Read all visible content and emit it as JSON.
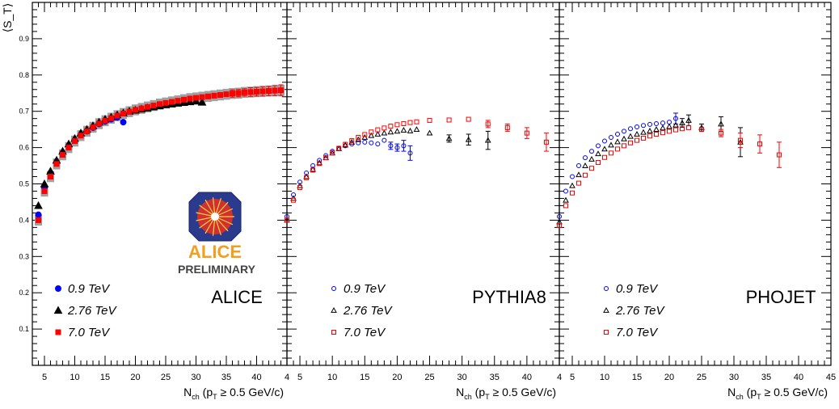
{
  "y_axis_label": "⟨S_T⟩",
  "colors": {
    "e09": "#0000ff",
    "e276": "#000000",
    "e70": "#ff0000",
    "band": "#a0a0a0"
  },
  "x_axis_label": {
    "main": "N",
    "sub": "ch",
    "mid": "  (p",
    "sub2": "T",
    "tail": " ≥ 0.5 GeV/c)"
  },
  "logo": {
    "word": "ALICE",
    "caption": "PRELIMINARY"
  },
  "chart_data": [
    {
      "type": "scatter",
      "panel_label": "ALICE",
      "xlim": [
        3,
        45
      ],
      "ylim": [
        0,
        1
      ],
      "x_ticks": [
        "5",
        "10",
        "15",
        "20",
        "25",
        "30",
        "35",
        "40",
        "4"
      ],
      "y_ticks": [
        "0.1",
        "0.2",
        "0.3",
        "0.4",
        "0.5",
        "0.6",
        "0.7",
        "0.8",
        "0.9"
      ],
      "marker_style": "filled",
      "systematic_band": true,
      "legend": [
        "0.9 TeV",
        "2.76 TeV",
        "7.0 TeV"
      ],
      "series": [
        {
          "name": "0.9 TeV",
          "color": "#0000ff",
          "marker": "circle",
          "x": [
            4,
            5,
            6,
            7,
            8,
            9,
            10,
            11,
            12,
            13,
            14,
            15,
            16,
            17,
            18
          ],
          "y": [
            0.415,
            0.49,
            0.53,
            0.56,
            0.585,
            0.605,
            0.62,
            0.635,
            0.645,
            0.655,
            0.665,
            0.672,
            0.678,
            0.683,
            0.67
          ],
          "err": [
            0,
            0,
            0,
            0,
            0,
            0,
            0,
            0,
            0,
            0,
            0,
            0,
            0,
            0,
            0
          ]
        },
        {
          "name": "2.76 TeV",
          "color": "#000000",
          "marker": "triangle",
          "x": [
            4,
            5,
            6,
            7,
            8,
            9,
            10,
            11,
            12,
            13,
            14,
            15,
            16,
            17,
            18,
            19,
            20,
            21,
            22,
            23,
            24,
            25,
            26,
            27,
            28,
            29,
            30,
            31
          ],
          "y": [
            0.44,
            0.5,
            0.535,
            0.565,
            0.59,
            0.61,
            0.625,
            0.64,
            0.65,
            0.66,
            0.67,
            0.678,
            0.684,
            0.69,
            0.695,
            0.7,
            0.703,
            0.706,
            0.709,
            0.712,
            0.715,
            0.718,
            0.72,
            0.722,
            0.724,
            0.726,
            0.728,
            0.725
          ],
          "err": [
            0,
            0,
            0,
            0,
            0,
            0,
            0,
            0,
            0,
            0,
            0,
            0,
            0,
            0,
            0,
            0,
            0,
            0,
            0,
            0,
            0,
            0,
            0,
            0,
            0,
            0,
            0,
            0
          ]
        },
        {
          "name": "7.0 TeV",
          "color": "#ff0000",
          "marker": "square",
          "x": [
            4,
            5,
            6,
            7,
            8,
            9,
            10,
            11,
            12,
            13,
            14,
            15,
            16,
            17,
            18,
            19,
            20,
            21,
            22,
            23,
            24,
            25,
            26,
            27,
            28,
            29,
            30,
            31,
            32,
            33,
            34,
            35,
            36,
            37,
            38,
            39,
            40,
            41,
            42,
            43,
            44
          ],
          "y": [
            0.4,
            0.48,
            0.52,
            0.555,
            0.58,
            0.6,
            0.618,
            0.633,
            0.645,
            0.656,
            0.666,
            0.674,
            0.681,
            0.688,
            0.694,
            0.699,
            0.704,
            0.708,
            0.712,
            0.716,
            0.72,
            0.723,
            0.726,
            0.729,
            0.732,
            0.735,
            0.737,
            0.739,
            0.741,
            0.743,
            0.745,
            0.747,
            0.749,
            0.75,
            0.752,
            0.753,
            0.754,
            0.755,
            0.756,
            0.757,
            0.758
          ],
          "err": [
            0,
            0,
            0,
            0,
            0,
            0,
            0,
            0,
            0,
            0,
            0,
            0,
            0,
            0,
            0,
            0,
            0,
            0,
            0,
            0,
            0,
            0,
            0,
            0,
            0,
            0,
            0,
            0,
            0,
            0,
            0,
            0,
            0.01,
            0.01,
            0.01,
            0.012,
            0.012,
            0.013,
            0.013,
            0.014,
            0.015
          ]
        }
      ]
    },
    {
      "type": "scatter",
      "panel_label": "PYTHIA8",
      "xlim": [
        3,
        45
      ],
      "ylim": [
        0,
        1
      ],
      "x_ticks": [
        "5",
        "10",
        "15",
        "20",
        "25",
        "30",
        "35",
        "40",
        "4"
      ],
      "y_ticks": [],
      "marker_style": "open",
      "systematic_band": false,
      "legend": [
        "0.9 TeV",
        "2.76 TeV",
        "7.0 TeV"
      ],
      "series": [
        {
          "name": "0.9 TeV",
          "color": "#0000ff",
          "marker": "circle",
          "x": [
            3,
            4,
            5,
            6,
            7,
            8,
            9,
            10,
            11,
            12,
            13,
            14,
            15,
            16,
            17,
            18,
            19,
            20,
            21,
            22
          ],
          "y": [
            0.41,
            0.47,
            0.505,
            0.53,
            0.55,
            0.565,
            0.578,
            0.59,
            0.598,
            0.605,
            0.61,
            0.613,
            0.615,
            0.613,
            0.61,
            0.62,
            0.605,
            0.6,
            0.605,
            0.585
          ],
          "err": [
            0,
            0,
            0,
            0,
            0,
            0,
            0,
            0,
            0,
            0,
            0,
            0,
            0,
            0,
            0,
            0,
            0.01,
            0.01,
            0.015,
            0.02
          ]
        },
        {
          "name": "2.76 TeV",
          "color": "#000000",
          "marker": "triangle",
          "x": [
            3,
            4,
            5,
            6,
            7,
            8,
            9,
            10,
            11,
            12,
            13,
            14,
            15,
            16,
            17,
            18,
            19,
            20,
            21,
            22,
            23,
            25,
            28,
            31,
            34
          ],
          "y": [
            0.4,
            0.46,
            0.495,
            0.52,
            0.54,
            0.558,
            0.572,
            0.585,
            0.597,
            0.607,
            0.615,
            0.622,
            0.628,
            0.633,
            0.637,
            0.64,
            0.643,
            0.645,
            0.648,
            0.646,
            0.65,
            0.64,
            0.625,
            0.622,
            0.62
          ],
          "err": [
            0,
            0,
            0,
            0,
            0,
            0,
            0,
            0,
            0,
            0,
            0,
            0,
            0,
            0,
            0,
            0,
            0,
            0,
            0,
            0,
            0,
            0,
            0.01,
            0.015,
            0.025
          ]
        },
        {
          "name": "7.0 TeV",
          "color": "#ff0000",
          "marker": "square",
          "x": [
            3,
            4,
            5,
            6,
            7,
            8,
            9,
            10,
            11,
            12,
            13,
            14,
            15,
            16,
            17,
            18,
            19,
            20,
            21,
            22,
            23,
            25,
            28,
            31,
            34,
            37,
            40,
            43
          ],
          "y": [
            0.4,
            0.455,
            0.49,
            0.517,
            0.538,
            0.556,
            0.572,
            0.586,
            0.598,
            0.609,
            0.619,
            0.628,
            0.636,
            0.643,
            0.649,
            0.654,
            0.659,
            0.663,
            0.666,
            0.669,
            0.671,
            0.675,
            0.676,
            0.678,
            0.665,
            0.655,
            0.64,
            0.615
          ],
          "err": [
            0,
            0,
            0,
            0,
            0,
            0,
            0,
            0,
            0,
            0,
            0,
            0,
            0,
            0,
            0,
            0,
            0,
            0,
            0,
            0,
            0,
            0,
            0,
            0,
            0.01,
            0.01,
            0.015,
            0.025
          ]
        }
      ]
    },
    {
      "type": "scatter",
      "panel_label": "PHOJET",
      "xlim": [
        3,
        45
      ],
      "ylim": [
        0,
        1
      ],
      "x_ticks": [
        "5",
        "10",
        "15",
        "20",
        "25",
        "30",
        "35",
        "40",
        "45"
      ],
      "y_ticks": [],
      "marker_style": "open",
      "systematic_band": false,
      "legend": [
        "0.9 TeV",
        "2.76 TeV",
        "7.0 TeV"
      ],
      "series": [
        {
          "name": "0.9 TeV",
          "color": "#0000ff",
          "marker": "circle",
          "x": [
            3,
            4,
            5,
            6,
            7,
            8,
            9,
            10,
            11,
            12,
            13,
            14,
            15,
            16,
            17,
            18,
            19,
            20,
            21
          ],
          "y": [
            0.41,
            0.48,
            0.52,
            0.55,
            0.572,
            0.59,
            0.605,
            0.618,
            0.628,
            0.637,
            0.645,
            0.652,
            0.657,
            0.661,
            0.664,
            0.666,
            0.668,
            0.67,
            0.68
          ],
          "err": [
            0,
            0,
            0,
            0,
            0,
            0,
            0,
            0,
            0,
            0,
            0,
            0,
            0,
            0,
            0,
            0,
            0,
            0,
            0.015
          ]
        },
        {
          "name": "2.76 TeV",
          "color": "#000000",
          "marker": "triangle",
          "x": [
            3,
            4,
            5,
            6,
            7,
            8,
            9,
            10,
            11,
            12,
            13,
            14,
            15,
            16,
            17,
            18,
            19,
            20,
            21,
            22,
            23,
            25,
            28,
            31
          ],
          "y": [
            0.395,
            0.455,
            0.495,
            0.525,
            0.55,
            0.568,
            0.583,
            0.596,
            0.607,
            0.616,
            0.624,
            0.631,
            0.637,
            0.642,
            0.646,
            0.65,
            0.654,
            0.658,
            0.662,
            0.668,
            0.675,
            0.655,
            0.665,
            0.615
          ],
          "err": [
            0,
            0,
            0,
            0,
            0,
            0,
            0,
            0,
            0,
            0,
            0,
            0,
            0,
            0,
            0,
            0,
            0,
            0,
            0,
            0.012,
            0.015,
            0.01,
            0.02,
            0.04
          ]
        },
        {
          "name": "7.0 TeV",
          "color": "#ff0000",
          "marker": "square",
          "x": [
            3,
            4,
            5,
            6,
            7,
            8,
            9,
            10,
            11,
            12,
            13,
            14,
            15,
            16,
            17,
            18,
            19,
            20,
            21,
            22,
            23,
            25,
            28,
            31,
            34,
            37
          ],
          "y": [
            0.385,
            0.44,
            0.475,
            0.502,
            0.524,
            0.543,
            0.559,
            0.573,
            0.585,
            0.596,
            0.605,
            0.613,
            0.62,
            0.626,
            0.632,
            0.637,
            0.641,
            0.645,
            0.649,
            0.652,
            0.655,
            0.65,
            0.64,
            0.62,
            0.61,
            0.58
          ],
          "err": [
            0,
            0,
            0,
            0,
            0,
            0,
            0,
            0,
            0,
            0,
            0,
            0,
            0,
            0,
            0,
            0,
            0,
            0,
            0,
            0,
            0,
            0,
            0.01,
            0.02,
            0.025,
            0.035
          ]
        }
      ]
    }
  ]
}
